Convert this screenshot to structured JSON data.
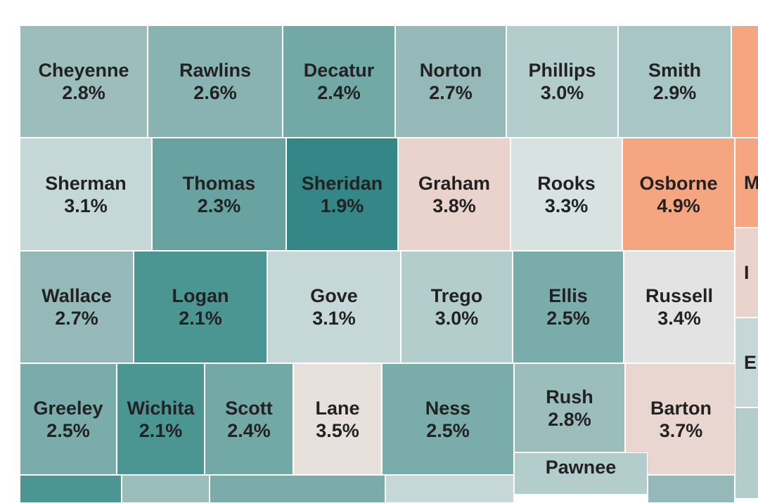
{
  "map": {
    "counties": [
      {
        "id": "cheyenne",
        "name": "Cheyenne",
        "rate": "2.8%",
        "color": "#9bbdbc"
      },
      {
        "id": "rawlins",
        "name": "Rawlins",
        "rate": "2.6%",
        "color": "#89b3b2"
      },
      {
        "id": "decatur",
        "name": "Decatur",
        "rate": "2.4%",
        "color": "#72a8a6"
      },
      {
        "id": "norton",
        "name": "Norton",
        "rate": "2.7%",
        "color": "#94b9b8"
      },
      {
        "id": "phillips",
        "name": "Phillips",
        "rate": "3.0%",
        "color": "#b3cdcc"
      },
      {
        "id": "smith",
        "name": "Smith",
        "rate": "2.9%",
        "color": "#a8c6c5"
      },
      {
        "id": "sherman",
        "name": "Sherman",
        "rate": "3.1%",
        "color": "#c5d7d6"
      },
      {
        "id": "thomas",
        "name": "Thomas",
        "rate": "2.3%",
        "color": "#69a3a1"
      },
      {
        "id": "sheridan",
        "name": "Sheridan",
        "rate": "1.9%",
        "color": "#348786"
      },
      {
        "id": "graham",
        "name": "Graham",
        "rate": "3.8%",
        "color": "#ead3cc"
      },
      {
        "id": "rooks",
        "name": "Rooks",
        "rate": "3.3%",
        "color": "#d7e2e1"
      },
      {
        "id": "osborne",
        "name": "Osborne",
        "rate": "4.9%",
        "color": "#f6a581"
      },
      {
        "id": "wallace",
        "name": "Wallace",
        "rate": "2.7%",
        "color": "#94b9b8"
      },
      {
        "id": "logan",
        "name": "Logan",
        "rate": "2.1%",
        "color": "#4b9593"
      },
      {
        "id": "gove",
        "name": "Gove",
        "rate": "3.1%",
        "color": "#c5d7d6"
      },
      {
        "id": "trego",
        "name": "Trego",
        "rate": "3.0%",
        "color": "#b3cdcc"
      },
      {
        "id": "ellis",
        "name": "Ellis",
        "rate": "2.5%",
        "color": "#79acaa"
      },
      {
        "id": "russell",
        "name": "Russell",
        "rate": "3.4%",
        "color": "#e3e3e3"
      },
      {
        "id": "greeley",
        "name": "Greeley",
        "rate": "2.5%",
        "color": "#79acaa"
      },
      {
        "id": "wichita",
        "name": "Wichita",
        "rate": "2.1%",
        "color": "#4b9593"
      },
      {
        "id": "scott",
        "name": "Scott",
        "rate": "2.4%",
        "color": "#72a8a6"
      },
      {
        "id": "lane",
        "name": "Lane",
        "rate": "3.5%",
        "color": "#e8e0dd"
      },
      {
        "id": "ness",
        "name": "Ness",
        "rate": "2.5%",
        "color": "#79acaa"
      },
      {
        "id": "rush",
        "name": "Rush",
        "rate": "2.8%",
        "color": "#9bbdbc"
      },
      {
        "id": "barton",
        "name": "Barton",
        "rate": "3.7%",
        "color": "#ead6d0"
      },
      {
        "id": "pawnee",
        "name": "Pawnee",
        "rate": "",
        "color": "#b3cdcc"
      },
      {
        "id": "east-top",
        "name": "",
        "rate": "",
        "color": "#f6a581"
      },
      {
        "id": "east-m",
        "name": "M",
        "rate": "",
        "color": "#f6a581"
      },
      {
        "id": "east-l",
        "name": "I",
        "rate": "",
        "color": "#ead3cc"
      },
      {
        "id": "east-e",
        "name": "E",
        "rate": "",
        "color": "#c5d7d6"
      },
      {
        "id": "east-bottom",
        "name": "",
        "rate": "",
        "color": "#b3cdcc"
      },
      {
        "id": "row5-a",
        "name": "",
        "rate": "",
        "color": "#4b9593"
      },
      {
        "id": "row5-b",
        "name": "",
        "rate": "",
        "color": "#9bbdbc"
      },
      {
        "id": "row5-c",
        "name": "",
        "rate": "",
        "color": "#79acaa"
      },
      {
        "id": "row5-d",
        "name": "",
        "rate": "",
        "color": "#c5d7d6"
      },
      {
        "id": "row5-e",
        "name": "",
        "rate": "",
        "color": "#94b9b8"
      }
    ]
  }
}
